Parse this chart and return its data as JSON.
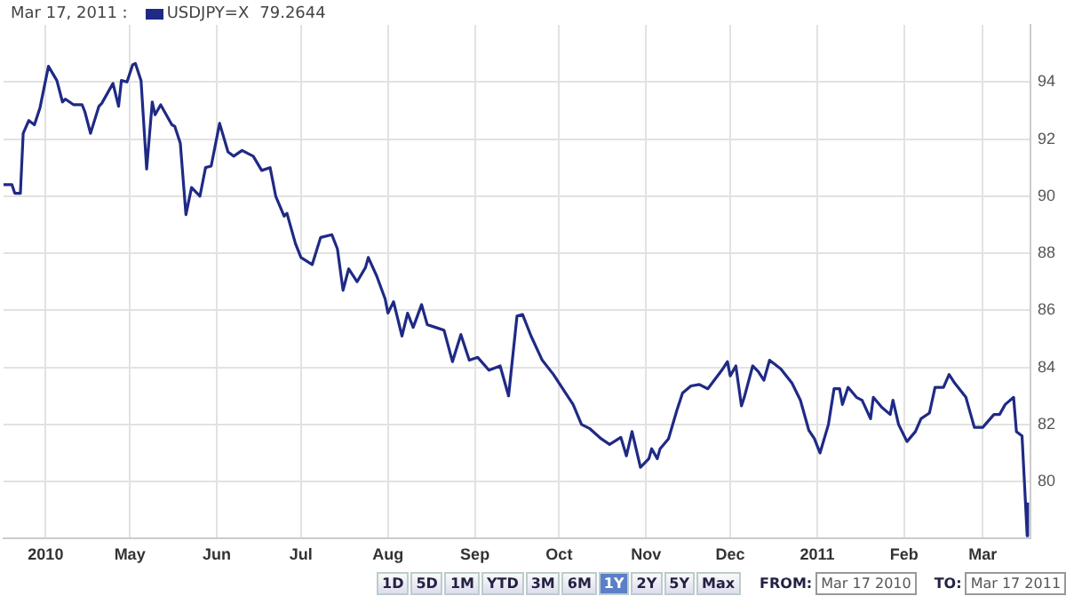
{
  "chart_data": {
    "type": "line",
    "title": "Mar 17, 2011 :",
    "x": [
      "2010-03-17",
      "2010-03-20",
      "2010-03-21",
      "2010-03-23",
      "2010-03-24",
      "2010-03-26",
      "2010-03-28",
      "2010-03-30",
      "2010-04-02",
      "2010-04-05",
      "2010-04-07",
      "2010-04-08",
      "2010-04-11",
      "2010-04-14",
      "2010-04-15",
      "2010-04-17",
      "2010-04-20",
      "2010-04-21",
      "2010-04-25",
      "2010-04-27",
      "2010-04-28",
      "2010-04-30",
      "2010-05-02",
      "2010-05-03",
      "2010-05-05",
      "2010-05-07",
      "2010-05-09",
      "2010-05-10",
      "2010-05-12",
      "2010-05-16",
      "2010-05-17",
      "2010-05-19",
      "2010-05-21",
      "2010-05-23",
      "2010-05-26",
      "2010-05-28",
      "2010-05-30",
      "2010-06-02",
      "2010-06-05",
      "2010-06-07",
      "2010-06-10",
      "2010-06-14",
      "2010-06-17",
      "2010-06-20",
      "2010-06-22",
      "2010-06-25",
      "2010-06-26",
      "2010-06-29",
      "2010-07-01",
      "2010-07-05",
      "2010-07-08",
      "2010-07-12",
      "2010-07-14",
      "2010-07-16",
      "2010-07-18",
      "2010-07-21",
      "2010-07-24",
      "2010-07-25",
      "2010-07-28",
      "2010-07-31",
      "2010-08-01",
      "2010-08-03",
      "2010-08-06",
      "2010-08-08",
      "2010-08-10",
      "2010-08-13",
      "2010-08-15",
      "2010-08-18",
      "2010-08-21",
      "2010-08-24",
      "2010-08-27",
      "2010-08-30",
      "2010-09-02",
      "2010-09-06",
      "2010-09-10",
      "2010-09-13",
      "2010-09-16",
      "2010-09-18",
      "2010-09-21",
      "2010-09-25",
      "2010-09-29",
      "2010-10-02",
      "2010-10-06",
      "2010-10-09",
      "2010-10-12",
      "2010-10-16",
      "2010-10-19",
      "2010-10-23",
      "2010-10-25",
      "2010-10-27",
      "2010-10-30",
      "2010-11-02",
      "2010-11-03",
      "2010-11-05",
      "2010-11-06",
      "2010-11-09",
      "2010-11-12",
      "2010-11-14",
      "2010-11-17",
      "2010-11-20",
      "2010-11-23",
      "2010-11-28",
      "2010-11-30",
      "2010-12-01",
      "2010-12-03",
      "2010-12-05",
      "2010-12-06",
      "2010-12-09",
      "2010-12-11",
      "2010-12-13",
      "2010-12-15",
      "2010-12-19",
      "2010-12-23",
      "2010-12-26",
      "2010-12-29",
      "2010-12-31",
      "2011-01-02",
      "2011-01-05",
      "2011-01-07",
      "2011-01-09",
      "2011-01-10",
      "2011-01-12",
      "2011-01-15",
      "2011-01-17",
      "2011-01-20",
      "2011-01-21",
      "2011-01-24",
      "2011-01-27",
      "2011-01-28",
      "2011-01-30",
      "2011-02-02",
      "2011-02-05",
      "2011-02-07",
      "2011-02-10",
      "2011-02-12",
      "2011-02-15",
      "2011-02-17",
      "2011-02-19",
      "2011-02-23",
      "2011-02-26",
      "2011-03-01",
      "2011-03-05",
      "2011-03-07",
      "2011-03-09",
      "2011-03-12",
      "2011-03-13",
      "2011-03-15",
      "2011-03-16T20:00",
      "2011-03-17"
    ],
    "series": [
      {
        "name": "USDJPY=X",
        "color": "#1f2a85",
        "values": [
          90.4,
          90.4,
          90.1,
          90.1,
          92.2,
          92.65,
          92.5,
          93.1,
          94.55,
          94.05,
          93.3,
          93.4,
          93.2,
          93.2,
          92.95,
          92.2,
          93.15,
          93.25,
          93.95,
          93.15,
          94.05,
          94.0,
          94.6,
          94.65,
          94.05,
          90.95,
          93.3,
          92.85,
          93.2,
          92.5,
          92.45,
          91.85,
          89.35,
          90.3,
          90.0,
          91.0,
          91.05,
          92.55,
          91.55,
          91.4,
          91.6,
          91.4,
          90.9,
          91.0,
          90.0,
          89.3,
          89.4,
          88.35,
          87.85,
          87.6,
          88.55,
          88.65,
          88.15,
          86.7,
          87.45,
          87.0,
          87.5,
          87.85,
          87.2,
          86.4,
          85.9,
          86.3,
          85.1,
          85.9,
          85.4,
          86.2,
          85.5,
          85.4,
          85.3,
          84.2,
          85.15,
          84.25,
          84.35,
          83.9,
          84.05,
          83.0,
          85.8,
          85.85,
          85.1,
          84.25,
          83.75,
          83.3,
          82.7,
          82.0,
          81.85,
          81.5,
          81.3,
          81.55,
          80.9,
          81.75,
          80.5,
          80.8,
          81.15,
          80.8,
          81.15,
          81.5,
          82.5,
          83.1,
          83.35,
          83.4,
          83.25,
          83.9,
          84.2,
          83.7,
          84.05,
          82.65,
          82.95,
          84.05,
          83.85,
          83.55,
          84.25,
          83.95,
          83.45,
          82.85,
          81.8,
          81.5,
          81.0,
          82.0,
          83.25,
          83.25,
          82.7,
          83.3,
          82.95,
          82.85,
          82.2,
          82.95,
          82.6,
          82.35,
          82.85,
          82.0,
          81.4,
          81.75,
          82.2,
          82.4,
          83.3,
          83.3,
          83.75,
          83.45,
          82.95,
          81.9,
          81.9,
          82.35,
          82.35,
          82.7,
          82.95,
          81.75,
          81.6,
          78.1,
          79.2644
        ]
      }
    ],
    "xlim": [
      "2010-03-17",
      "2011-03-18"
    ],
    "xticks": [
      {
        "value": "2010-04-01",
        "label": "2010"
      },
      {
        "value": "2010-05-01",
        "label": "May"
      },
      {
        "value": "2010-06-01",
        "label": "Jun"
      },
      {
        "value": "2010-07-01",
        "label": "Jul"
      },
      {
        "value": "2010-08-01",
        "label": "Aug"
      },
      {
        "value": "2010-09-01",
        "label": "Sep"
      },
      {
        "value": "2010-10-01",
        "label": "Oct"
      },
      {
        "value": "2010-11-01",
        "label": "Nov"
      },
      {
        "value": "2010-12-01",
        "label": "Dec"
      },
      {
        "value": "2011-01-01",
        "label": "2011"
      },
      {
        "value": "2011-02-01",
        "label": "Feb"
      },
      {
        "value": "2011-03-01",
        "label": "Mar"
      }
    ],
    "ylim": [
      78,
      96
    ],
    "yticks": [
      80,
      82,
      84,
      86,
      88,
      90,
      92,
      94
    ],
    "grid": true,
    "legend": "top left",
    "annotations": [
      "79.2644",
      "1D",
      "5D",
      "1M",
      "YTD",
      "3M",
      "6M",
      "1Y",
      "2Y",
      "5Y",
      "Max",
      "FROM:",
      "Mar 17 2010",
      "TO:",
      "Mar 17 2011"
    ]
  }
}
